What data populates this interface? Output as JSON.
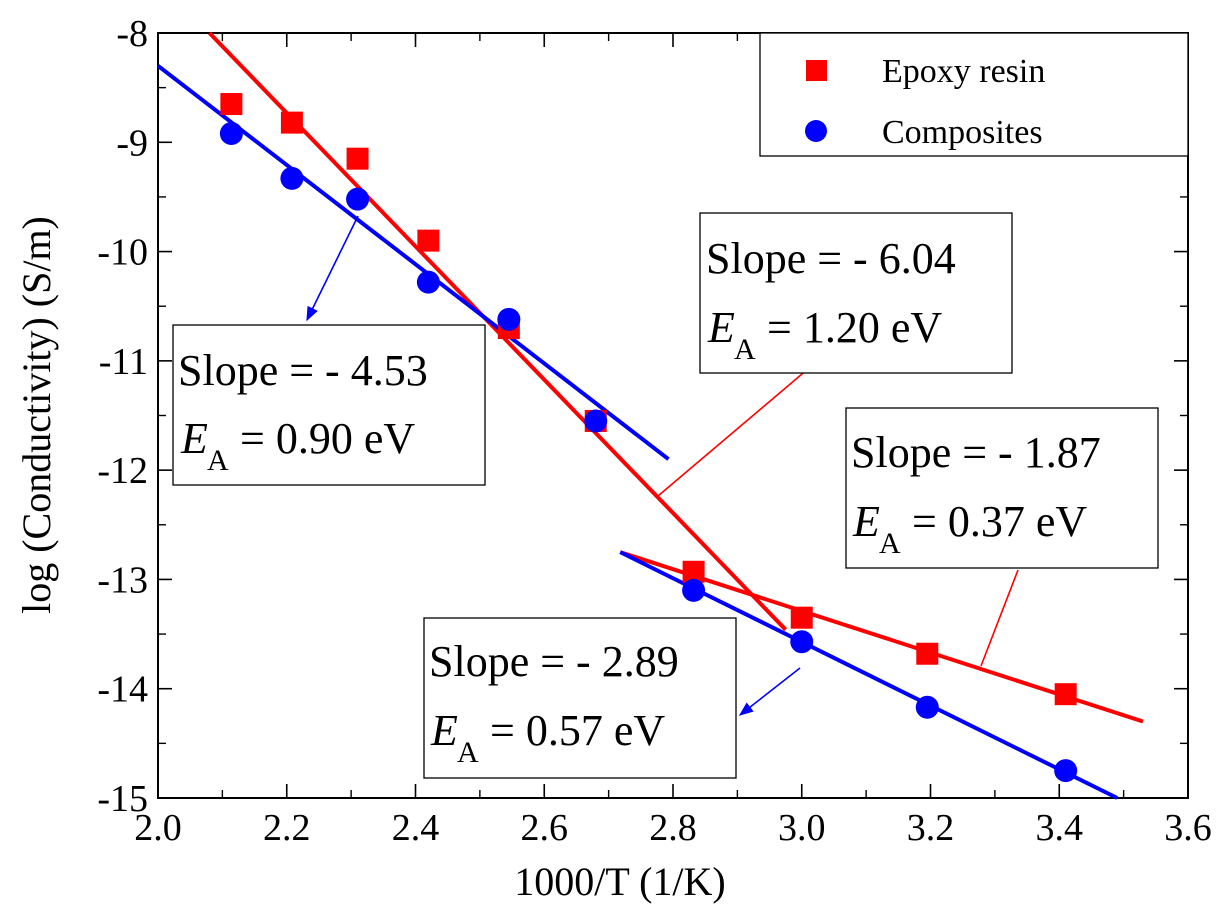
{
  "chart_data": {
    "type": "scatter",
    "xlabel": "1000/T (1/K)",
    "ylabel": "log (Conductivity) (S/m)",
    "xlim": [
      2.0,
      3.6
    ],
    "ylim": [
      -15,
      -8
    ],
    "xticks": [
      "2.0",
      "2.2",
      "2.4",
      "2.6",
      "2.8",
      "3.0",
      "3.2",
      "3.4",
      "3.6"
    ],
    "yticks": [
      "-8",
      "-9",
      "-10",
      "-11",
      "-12",
      "-13",
      "-14",
      "-15"
    ],
    "legend_position": "top-right",
    "series": [
      {
        "name": "Epoxy resin",
        "marker": "square",
        "color": "#ff0000",
        "x": [
          2.114,
          2.208,
          2.31,
          2.42,
          2.545,
          2.68,
          2.832,
          3.0,
          3.195,
          3.41
        ],
        "y": [
          -8.65,
          -8.82,
          -9.15,
          -9.9,
          -10.7,
          -11.55,
          -12.93,
          -13.35,
          -13.68,
          -14.05
        ]
      },
      {
        "name": "Composites",
        "marker": "circle",
        "color": "#0000ff",
        "x": [
          2.114,
          2.208,
          2.31,
          2.42,
          2.545,
          2.68,
          2.832,
          3.0,
          3.195,
          3.41
        ],
        "y": [
          -8.92,
          -9.33,
          -9.52,
          -10.28,
          -10.62,
          -11.55,
          -13.1,
          -13.57,
          -14.17,
          -14.75
        ]
      }
    ],
    "fit_lines": [
      {
        "name": "epoxy-high-T-fit",
        "color": "#ff0000",
        "x": [
          2.08,
          2.975
        ],
        "y": [
          -8.0,
          -13.46
        ]
      },
      {
        "name": "epoxy-low-T-fit",
        "color": "#ff0000",
        "x": [
          2.718,
          3.53
        ],
        "y": [
          -12.75,
          -14.3
        ]
      },
      {
        "name": "composite-high-T-fit",
        "color": "#0000ff",
        "x": [
          2.0,
          2.793
        ],
        "y": [
          -8.3,
          -11.9
        ]
      },
      {
        "name": "composite-low-T-fit",
        "color": "#0000ff",
        "x": [
          2.718,
          3.49
        ],
        "y": [
          -12.75,
          -15.0
        ]
      }
    ],
    "annotations": [
      {
        "slope": "Slope = - 4.53",
        "ea_symbol": "E",
        "ea_sub": "A",
        "ea_value": "= 0.90 eV",
        "color": "#0000ff"
      },
      {
        "slope": "Slope = - 6.04",
        "ea_symbol": "E",
        "ea_sub": "A",
        "ea_value": "= 1.20 eV",
        "color": "#ff0000"
      },
      {
        "slope": "Slope = - 1.87",
        "ea_symbol": "E",
        "ea_sub": "A",
        "ea_value": "= 0.37 eV",
        "color": "#ff0000"
      },
      {
        "slope": "Slope = - 2.89",
        "ea_symbol": "E",
        "ea_sub": "A",
        "ea_value": "= 0.57 eV",
        "color": "#0000ff"
      }
    ]
  }
}
